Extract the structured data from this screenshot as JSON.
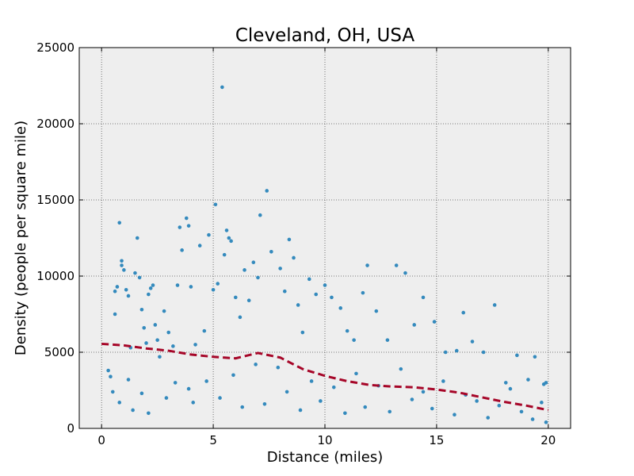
{
  "chart_data": {
    "type": "scatter",
    "title": "Cleveland, OH, USA",
    "xlabel": "Distance (miles)",
    "ylabel": "Density (people per square mile)",
    "xlim": [
      -1,
      21
    ],
    "ylim": [
      0,
      25000
    ],
    "x_ticks": [
      0,
      5,
      10,
      15,
      20
    ],
    "y_ticks": [
      0,
      5000,
      10000,
      15000,
      20000,
      25000
    ],
    "grid": true,
    "background": "#eeeeee",
    "colors": {
      "points": "#348abd",
      "trend": "#a60628"
    },
    "series": [
      {
        "type": "scatter",
        "points": [
          [
            0.3,
            3800
          ],
          [
            0.4,
            3400
          ],
          [
            0.5,
            2400
          ],
          [
            0.6,
            9000
          ],
          [
            0.6,
            7500
          ],
          [
            0.7,
            9300
          ],
          [
            0.8,
            13500
          ],
          [
            0.9,
            11000
          ],
          [
            0.9,
            10700
          ],
          [
            1.0,
            10400
          ],
          [
            1.1,
            9100
          ],
          [
            1.2,
            8700
          ],
          [
            1.3,
            5300
          ],
          [
            1.4,
            1200
          ],
          [
            1.5,
            10200
          ],
          [
            1.6,
            12500
          ],
          [
            1.7,
            9900
          ],
          [
            1.8,
            7800
          ],
          [
            1.9,
            6600
          ],
          [
            2.0,
            5600
          ],
          [
            2.1,
            8800
          ],
          [
            2.2,
            9200
          ],
          [
            2.3,
            9400
          ],
          [
            2.4,
            6800
          ],
          [
            2.5,
            5800
          ],
          [
            2.6,
            4700
          ],
          [
            2.8,
            7700
          ],
          [
            3.0,
            6300
          ],
          [
            3.2,
            5400
          ],
          [
            3.4,
            9400
          ],
          [
            3.5,
            13200
          ],
          [
            3.6,
            11700
          ],
          [
            3.8,
            13800
          ],
          [
            3.9,
            13300
          ],
          [
            4.0,
            9300
          ],
          [
            4.2,
            5500
          ],
          [
            4.4,
            12000
          ],
          [
            4.6,
            6400
          ],
          [
            4.8,
            12700
          ],
          [
            5.0,
            9100
          ],
          [
            5.1,
            14700
          ],
          [
            5.2,
            9500
          ],
          [
            5.4,
            22400
          ],
          [
            5.5,
            11400
          ],
          [
            5.6,
            13000
          ],
          [
            5.7,
            12500
          ],
          [
            5.8,
            12300
          ],
          [
            6.0,
            8600
          ],
          [
            6.2,
            7300
          ],
          [
            6.4,
            10400
          ],
          [
            6.6,
            8400
          ],
          [
            6.8,
            10900
          ],
          [
            7.0,
            9900
          ],
          [
            7.1,
            14000
          ],
          [
            7.4,
            15600
          ],
          [
            7.6,
            11600
          ],
          [
            8.0,
            10500
          ],
          [
            8.2,
            9000
          ],
          [
            8.4,
            12400
          ],
          [
            8.6,
            11200
          ],
          [
            8.8,
            8100
          ],
          [
            9.0,
            6300
          ],
          [
            9.3,
            9800
          ],
          [
            9.6,
            8800
          ],
          [
            10.0,
            9400
          ],
          [
            10.3,
            8600
          ],
          [
            10.7,
            7900
          ],
          [
            11.0,
            6400
          ],
          [
            11.3,
            5800
          ],
          [
            11.7,
            8900
          ],
          [
            11.9,
            10700
          ],
          [
            12.3,
            7700
          ],
          [
            12.8,
            5800
          ],
          [
            13.2,
            10700
          ],
          [
            13.6,
            10200
          ],
          [
            14.0,
            6800
          ],
          [
            14.4,
            8600
          ],
          [
            14.9,
            7000
          ],
          [
            15.4,
            5000
          ],
          [
            15.9,
            5100
          ],
          [
            16.2,
            7600
          ],
          [
            16.6,
            5700
          ],
          [
            17.1,
            5000
          ],
          [
            17.6,
            8100
          ],
          [
            18.1,
            3000
          ],
          [
            18.6,
            4800
          ],
          [
            19.1,
            3200
          ],
          [
            19.4,
            4700
          ],
          [
            19.8,
            2900
          ],
          [
            19.9,
            3000
          ],
          [
            0.8,
            1700
          ],
          [
            1.2,
            3200
          ],
          [
            1.8,
            2300
          ],
          [
            2.1,
            1000
          ],
          [
            2.9,
            2000
          ],
          [
            3.3,
            3000
          ],
          [
            3.9,
            2600
          ],
          [
            4.1,
            1700
          ],
          [
            4.7,
            3100
          ],
          [
            5.3,
            2000
          ],
          [
            5.9,
            3500
          ],
          [
            6.3,
            1400
          ],
          [
            6.9,
            4200
          ],
          [
            7.3,
            1600
          ],
          [
            7.9,
            4000
          ],
          [
            8.3,
            2400
          ],
          [
            8.9,
            1200
          ],
          [
            9.4,
            3100
          ],
          [
            9.8,
            1800
          ],
          [
            10.4,
            2700
          ],
          [
            10.9,
            1000
          ],
          [
            11.4,
            3600
          ],
          [
            11.8,
            1400
          ],
          [
            12.4,
            2800
          ],
          [
            12.9,
            1100
          ],
          [
            13.4,
            3900
          ],
          [
            13.9,
            1900
          ],
          [
            14.4,
            2400
          ],
          [
            14.8,
            1300
          ],
          [
            15.3,
            3100
          ],
          [
            15.8,
            900
          ],
          [
            16.3,
            2200
          ],
          [
            16.8,
            1800
          ],
          [
            17.3,
            700
          ],
          [
            17.8,
            1500
          ],
          [
            18.3,
            2600
          ],
          [
            18.8,
            1100
          ],
          [
            19.3,
            600
          ],
          [
            19.7,
            1700
          ],
          [
            19.9,
            400
          ]
        ]
      },
      {
        "type": "line",
        "style": "dashed",
        "points": [
          [
            0,
            5550
          ],
          [
            1,
            5450
          ],
          [
            2,
            5250
          ],
          [
            3,
            5100
          ],
          [
            4,
            4850
          ],
          [
            5,
            4700
          ],
          [
            6,
            4600
          ],
          [
            7,
            4950
          ],
          [
            8,
            4650
          ],
          [
            9,
            3900
          ],
          [
            10,
            3450
          ],
          [
            11,
            3100
          ],
          [
            12,
            2850
          ],
          [
            13,
            2750
          ],
          [
            14,
            2700
          ],
          [
            15,
            2550
          ],
          [
            16,
            2350
          ],
          [
            17,
            2050
          ],
          [
            18,
            1750
          ],
          [
            19,
            1500
          ],
          [
            20,
            1200
          ]
        ]
      }
    ]
  }
}
